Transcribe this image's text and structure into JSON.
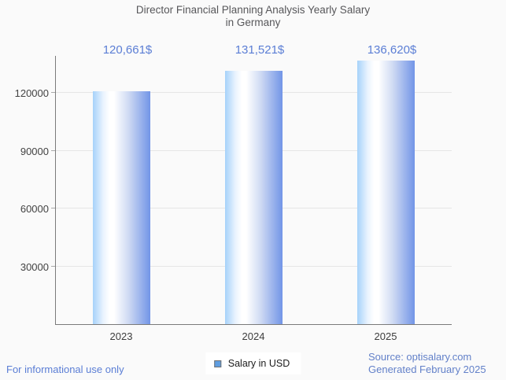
{
  "page": {
    "background": "#fafafa"
  },
  "chart_data": {
    "type": "bar",
    "title": "Director Financial Planning Analysis Yearly Salary in Germany",
    "title_line1": "Director Financial Planning Analysis Yearly Salary",
    "title_line2": "in Germany",
    "categories": [
      "2023",
      "2024",
      "2025"
    ],
    "series": [
      {
        "name": "Salary in USD",
        "values": [
          120661,
          131521,
          136620
        ]
      }
    ],
    "values": [
      120661,
      131521,
      136620
    ],
    "value_labels": [
      "120,661$",
      "131,521$",
      "136,620$"
    ],
    "xlabel": "",
    "ylabel": "",
    "ylim": [
      0,
      139600
    ],
    "yticks": [
      30000,
      60000,
      90000,
      120000
    ],
    "ytick_labels": [
      "30000",
      "60000",
      "90000",
      "120000"
    ],
    "grid": "horizontal",
    "legend_position": "bottom",
    "bar_gradient": [
      "#a6d2fa",
      "#ffffff",
      "#7295e7"
    ],
    "value_label_color": "#5b7ed5",
    "axis_color": "#7a7a7a",
    "gridline_color": "#e6e6e6"
  },
  "legend": {
    "label": "Salary in USD",
    "swatch_color": "#5f9de0"
  },
  "footer": {
    "left": "For informational use only",
    "source": "Source: optisalary.com",
    "generated": "Generated February 2025"
  }
}
